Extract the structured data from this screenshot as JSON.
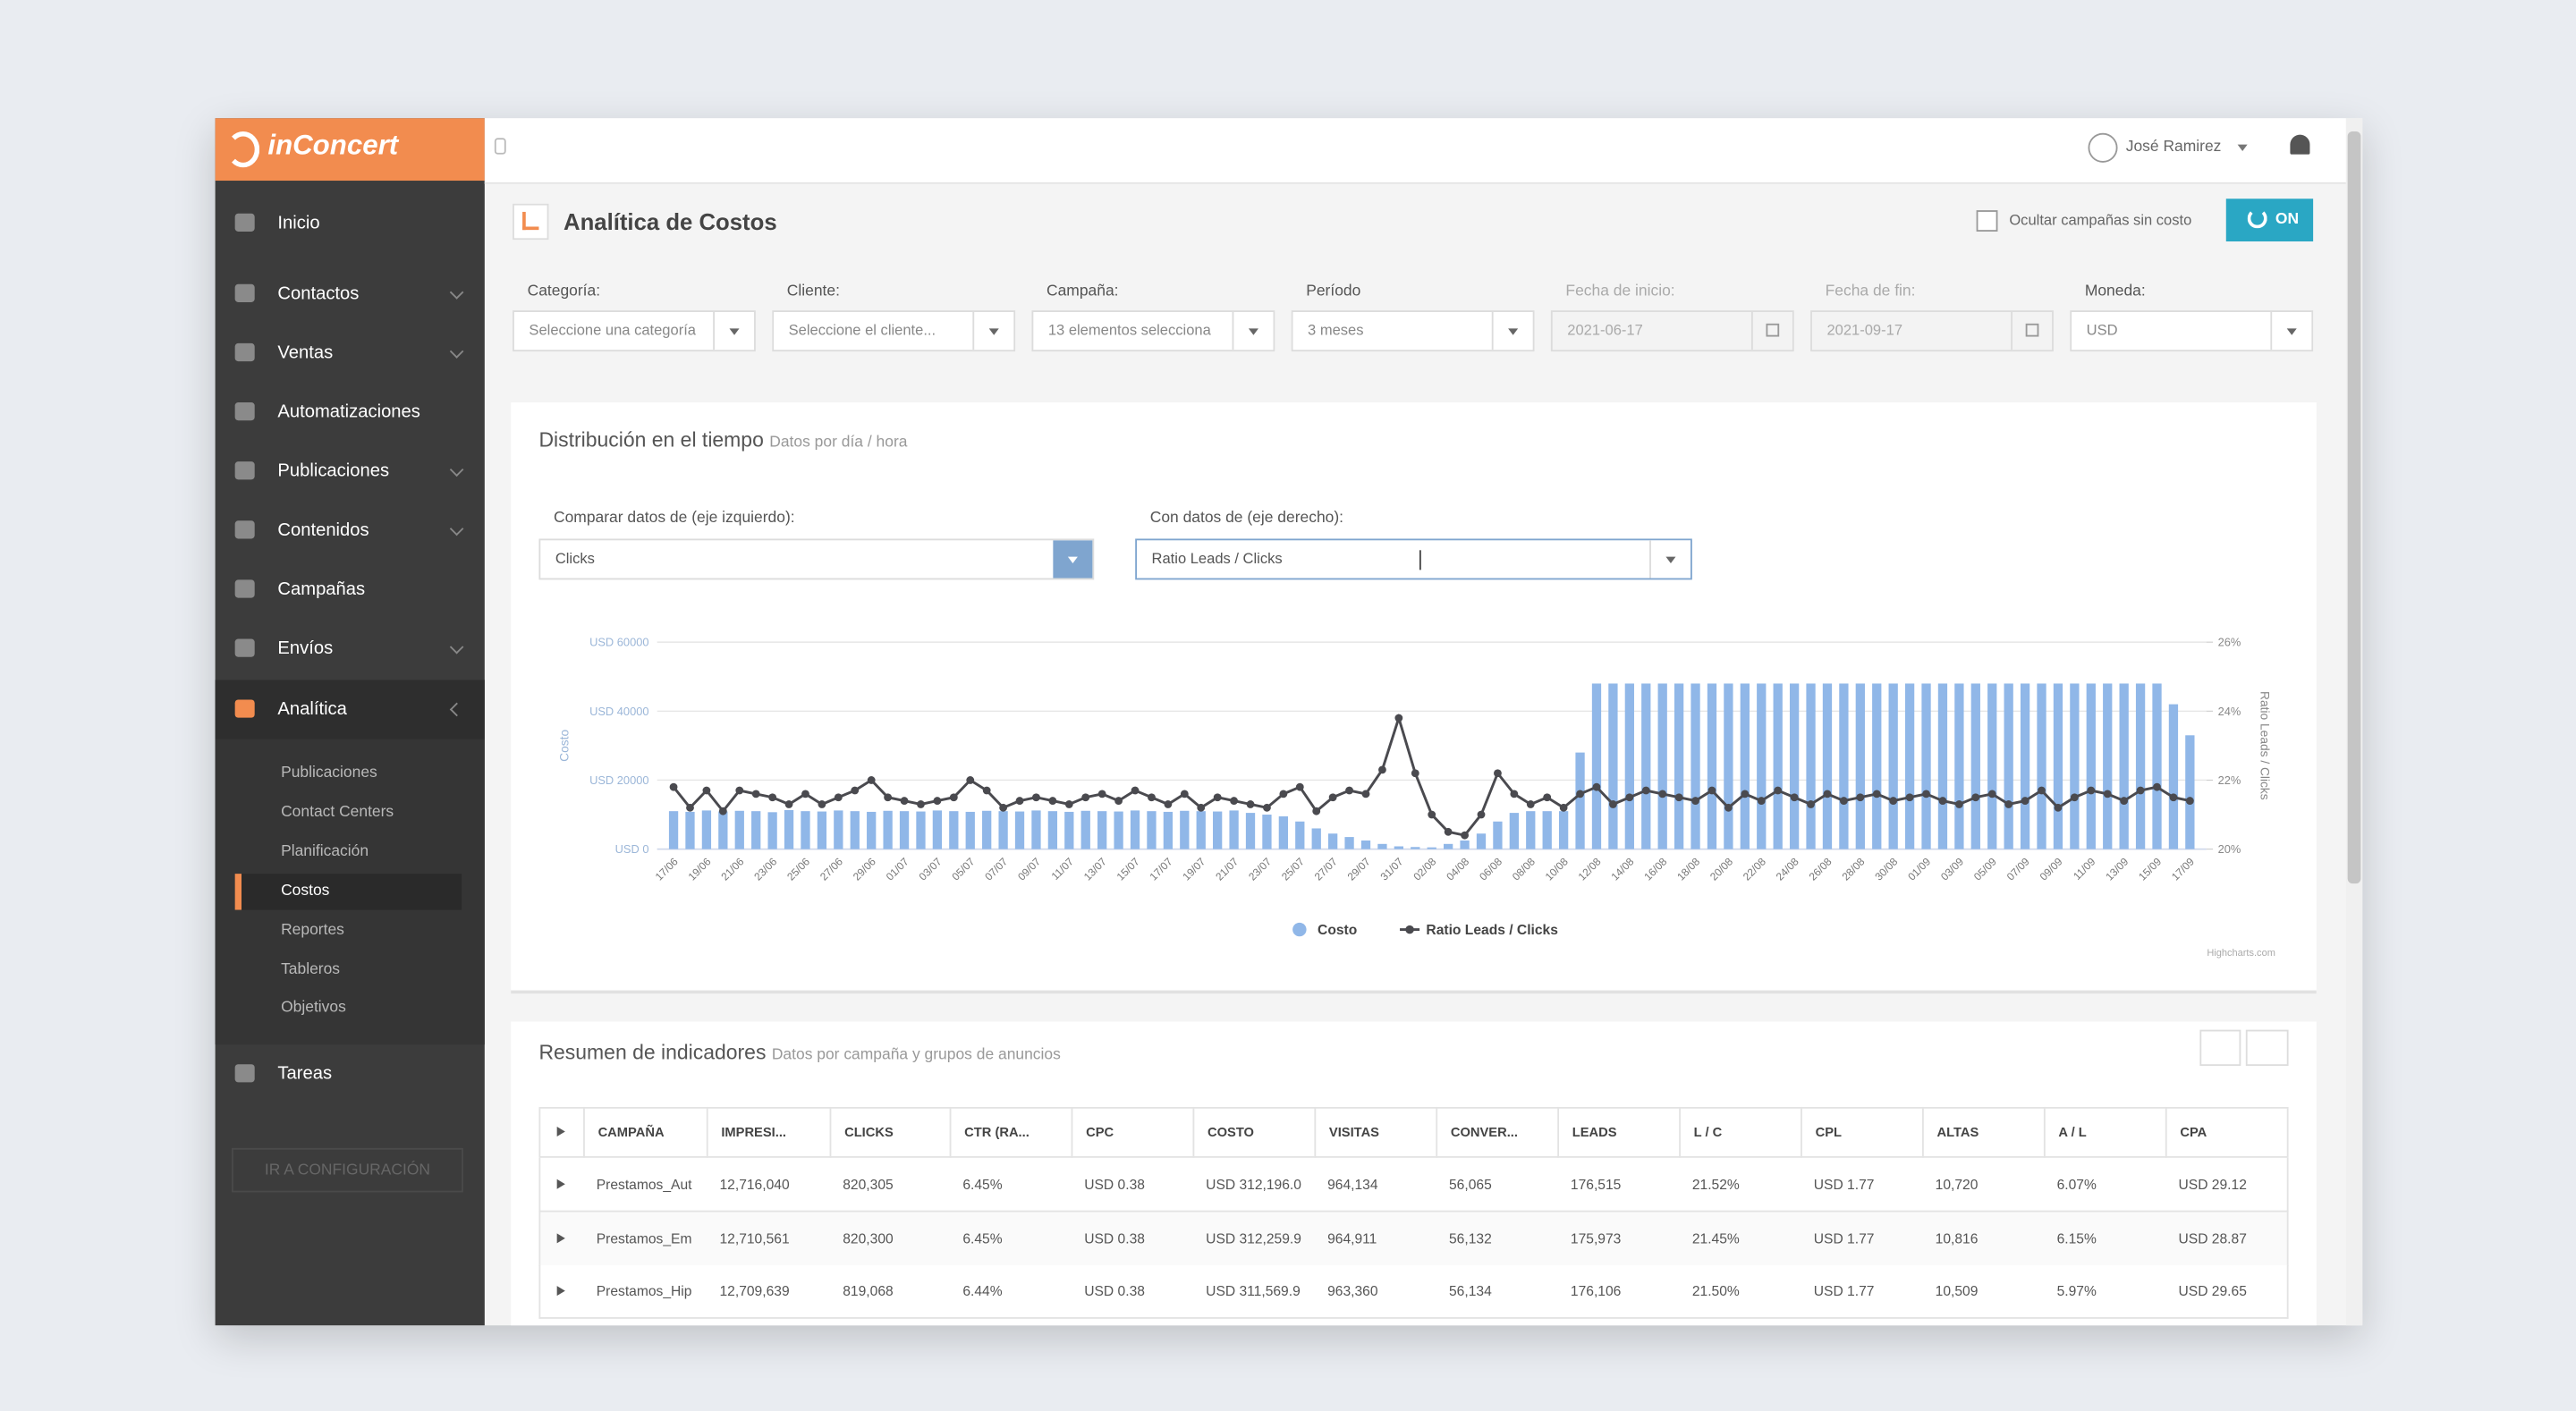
{
  "header": {
    "logo": "inConcert",
    "user": "José Ramirez"
  },
  "sidebar": {
    "items": [
      "Inicio",
      "Contactos",
      "Ventas",
      "Automatizaciones",
      "Publicaciones",
      "Contenidos",
      "Campañas",
      "Envíos",
      "Analítica"
    ],
    "submenu": [
      "Publicaciones",
      "Contact Centers",
      "Planificación",
      "Costos",
      "Reportes",
      "Tableros",
      "Objetivos"
    ],
    "tasks": "Tareas",
    "config": "IR A CONFIGURACIÓN"
  },
  "page": {
    "title": "Analítica de Costos",
    "hide_label": "Ocultar campañas sin costo",
    "toggle": "ON"
  },
  "filters": [
    {
      "label": "Categoría:",
      "value": "Seleccione una categoría"
    },
    {
      "label": "Cliente:",
      "value": "Seleccione el cliente..."
    },
    {
      "label": "Campaña:",
      "value": "13 elementos selecciona"
    },
    {
      "label": "Período",
      "value": "3 meses"
    },
    {
      "label": "Fecha de inicio:",
      "value": "2021-06-17"
    },
    {
      "label": "Fecha de fin:",
      "value": "2021-09-17"
    },
    {
      "label": "Moneda:",
      "value": "USD"
    }
  ],
  "chart_panel": {
    "title": "Distribución en el tiempo",
    "subtitle": "Datos por día / hora",
    "left_label": "Comparar datos de (eje izquierdo):",
    "left_value": "Clicks",
    "right_label": "Con datos de (eje derecho):",
    "right_value": "Ratio Leads / Clicks",
    "credit": "Highcharts.com"
  },
  "chart_data": {
    "type": "bar",
    "y_label": "Costo",
    "y2_label": "Ratio Leads / Clicks",
    "categories": [
      "17/06",
      null,
      "19/06",
      null,
      "21/06",
      null,
      "23/06",
      null,
      "25/06",
      null,
      "27/06",
      null,
      "29/06",
      null,
      "01/07",
      null,
      "03/07",
      null,
      "05/07",
      null,
      "07/07",
      null,
      "09/07",
      null,
      "11/07",
      null,
      "13/07",
      null,
      "15/07",
      null,
      "17/07",
      null,
      "19/07",
      null,
      "21/07",
      null,
      "23/07",
      null,
      "25/07",
      null,
      "27/07",
      null,
      "29/07",
      null,
      "31/07",
      null,
      "02/08",
      null,
      "04/08",
      null,
      "06/08",
      null,
      "08/08",
      null,
      "10/08",
      null,
      "12/08",
      null,
      "14/08",
      null,
      "16/08",
      null,
      "18/08",
      null,
      "20/08",
      null,
      "22/08",
      null,
      "24/08",
      null,
      "26/08",
      null,
      "28/08",
      null,
      "30/08",
      null,
      "01/09",
      null,
      "03/09",
      null,
      "05/09",
      null,
      "07/09",
      null,
      "09/09",
      null,
      "11/09",
      null,
      "13/09",
      null,
      "15/09",
      null,
      "17/09"
    ],
    "series": [
      {
        "name": "Costo",
        "color": "#90b7e8",
        "values": [
          11000,
          10800,
          11200,
          10900,
          11100,
          11000,
          10700,
          11300,
          11000,
          10900,
          11200,
          11000,
          10800,
          11100,
          11000,
          10900,
          11200,
          11000,
          10800,
          11100,
          11000,
          10900,
          11200,
          11000,
          10800,
          11100,
          11000,
          10900,
          11200,
          11000,
          10800,
          11100,
          11000,
          10900,
          11200,
          10500,
          10000,
          9500,
          8000,
          6000,
          4500,
          3500,
          2500,
          1500,
          800,
          600,
          500,
          1500,
          2500,
          4500,
          8000,
          10500,
          11000,
          11000,
          11000,
          28000,
          48000,
          48000,
          48000,
          48000,
          48000,
          48000,
          48000,
          48000,
          48000,
          48000,
          48000,
          48000,
          48000,
          48000,
          48000,
          48000,
          48000,
          48000,
          48000,
          48000,
          48000,
          48000,
          48000,
          48000,
          48000,
          48000,
          48000,
          48000,
          48000,
          48000,
          48000,
          48000,
          48000,
          48000,
          48000,
          42000,
          33000
        ]
      },
      {
        "name": "Ratio Leads / Clicks",
        "type": "line",
        "axis": "y2",
        "color": "#4a4a4f",
        "values": [
          21.8,
          21.2,
          21.7,
          21.1,
          21.7,
          21.6,
          21.5,
          21.3,
          21.6,
          21.3,
          21.5,
          21.7,
          22.0,
          21.5,
          21.4,
          21.3,
          21.4,
          21.5,
          22.0,
          21.7,
          21.2,
          21.4,
          21.5,
          21.4,
          21.3,
          21.5,
          21.6,
          21.4,
          21.7,
          21.5,
          21.3,
          21.6,
          21.2,
          21.5,
          21.4,
          21.3,
          21.2,
          21.6,
          21.8,
          21.1,
          21.5,
          21.7,
          21.6,
          22.3,
          23.8,
          22.2,
          21.0,
          20.5,
          20.4,
          21.0,
          22.2,
          21.6,
          21.3,
          21.5,
          21.2,
          21.6,
          21.8,
          21.3,
          21.5,
          21.7,
          21.6,
          21.5,
          21.4,
          21.7,
          21.2,
          21.6,
          21.4,
          21.7,
          21.5,
          21.3,
          21.6,
          21.4,
          21.5,
          21.6,
          21.4,
          21.5,
          21.6,
          21.4,
          21.3,
          21.5,
          21.6,
          21.3,
          21.4,
          21.7,
          21.2,
          21.5,
          21.7,
          21.6,
          21.4,
          21.7,
          21.8,
          21.5,
          21.4
        ]
      }
    ],
    "ylim": [
      0,
      60000
    ],
    "yticks": [
      {
        "value": 0,
        "label": "USD 0"
      },
      {
        "value": 20000,
        "label": "USD 20000"
      },
      {
        "value": 40000,
        "label": "USD 40000"
      },
      {
        "value": 60000,
        "label": "USD 60000"
      }
    ],
    "y2lim": [
      20,
      26
    ],
    "y2ticks": [
      {
        "value": 20,
        "label": "20%"
      },
      {
        "value": 22,
        "label": "22%"
      },
      {
        "value": 24,
        "label": "24%"
      },
      {
        "value": 26,
        "label": "26%"
      }
    ],
    "grid": true,
    "legend": "bottom"
  },
  "table_panel": {
    "title": "Resumen de indicadores",
    "subtitle": "Datos por campaña y grupos de anuncios",
    "columns": [
      "CAMPAÑA",
      "IMPRESI...",
      "CLICKS",
      "CTR (RA...",
      "CPC",
      "COSTO",
      "VISITAS",
      "CONVER...",
      "LEADS",
      "L / C",
      "CPL",
      "ALTAS",
      "A / L",
      "CPA"
    ],
    "rows": [
      [
        "Prestamos_Aut",
        "12,716,040",
        "820,305",
        "6.45%",
        "USD 0.38",
        "USD 312,196.0",
        "964,134",
        "56,065",
        "176,515",
        "21.52%",
        "USD 1.77",
        "10,720",
        "6.07%",
        "USD 29.12"
      ],
      [
        "Prestamos_Em",
        "12,710,561",
        "820,300",
        "6.45%",
        "USD 0.38",
        "USD 312,259.9",
        "964,911",
        "56,132",
        "175,973",
        "21.45%",
        "USD 1.77",
        "10,816",
        "6.15%",
        "USD 28.87"
      ],
      [
        "Prestamos_Hip",
        "12,709,639",
        "819,068",
        "6.44%",
        "USD 0.38",
        "USD 311,569.9",
        "963,360",
        "56,134",
        "176,106",
        "21.50%",
        "USD 1.77",
        "10,509",
        "5.97%",
        "USD 29.65"
      ]
    ]
  }
}
